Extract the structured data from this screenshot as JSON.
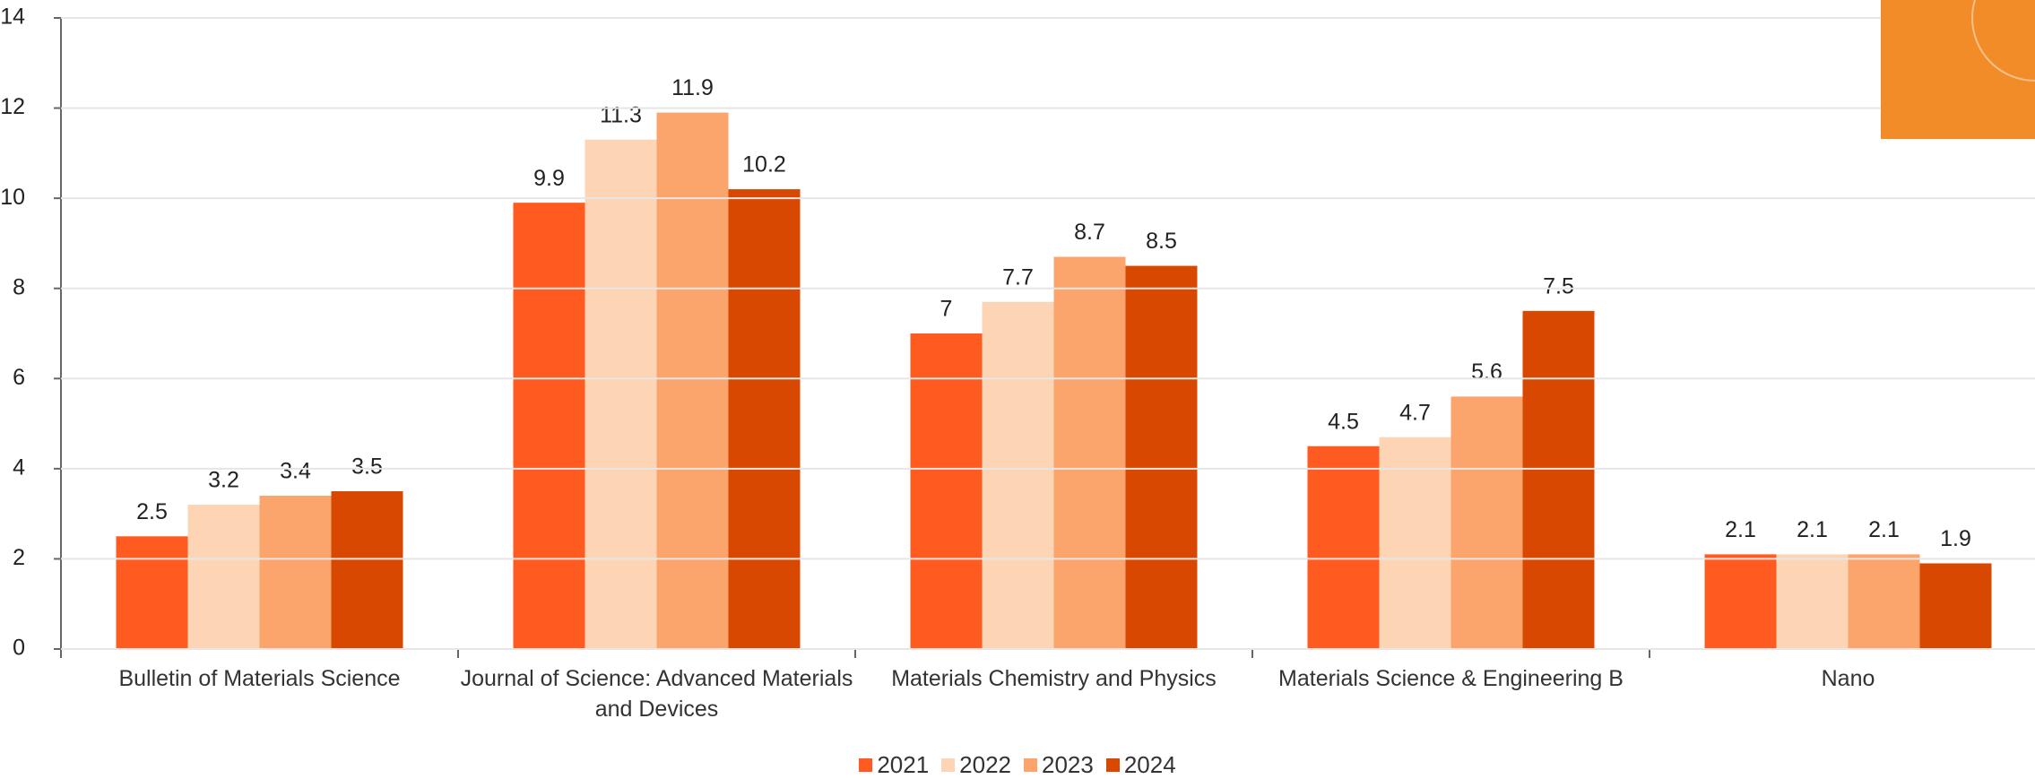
{
  "chart_data": {
    "type": "bar",
    "categories": [
      "Bulletin of Materials Science",
      "Journal of Science: Advanced Materials and Devices",
      "Materials Chemistry and Physics",
      "Materials Science & Engineering B",
      "Nano"
    ],
    "series": [
      {
        "name": "2021",
        "color": "#ff5a1f",
        "values": [
          2.5,
          9.9,
          7,
          4.5,
          2.1
        ]
      },
      {
        "name": "2022",
        "color": "#fdd5b4",
        "values": [
          3.2,
          11.3,
          7.7,
          4.7,
          2.1
        ]
      },
      {
        "name": "2023",
        "color": "#fba46b",
        "values": [
          3.4,
          11.9,
          8.7,
          5.6,
          2.1
        ]
      },
      {
        "name": "2024",
        "color": "#d94800",
        "values": [
          3.5,
          10.2,
          8.5,
          7.5,
          1.9
        ]
      }
    ],
    "ylim": [
      0,
      14
    ],
    "yticks": [
      0,
      2,
      4,
      6,
      8,
      10,
      12,
      14
    ],
    "grid": true,
    "legend": "bottom"
  }
}
